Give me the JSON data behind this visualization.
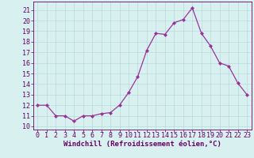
{
  "x": [
    0,
    1,
    2,
    3,
    4,
    5,
    6,
    7,
    8,
    9,
    10,
    11,
    12,
    13,
    14,
    15,
    16,
    17,
    18,
    19,
    20,
    21,
    22,
    23
  ],
  "y": [
    12,
    12,
    11,
    11,
    10.5,
    11,
    11,
    11.2,
    11.3,
    12,
    13.2,
    14.7,
    17.2,
    18.8,
    18.7,
    19.8,
    20.1,
    21.2,
    18.8,
    17.6,
    16.0,
    15.7,
    14.1,
    13.0
  ],
  "line_color": "#993399",
  "marker": "D",
  "marker_size": 2.0,
  "bg_color": "#d8f0f0",
  "grid_color": "#b8dada",
  "xlabel": "Windchill (Refroidissement éolien,°C)",
  "ylabel_ticks": [
    10,
    11,
    12,
    13,
    14,
    15,
    16,
    17,
    18,
    19,
    20,
    21
  ],
  "ylim": [
    9.7,
    21.8
  ],
  "xlim": [
    -0.5,
    23.5
  ],
  "xtick_labels": [
    "0",
    "1",
    "2",
    "3",
    "4",
    "5",
    "6",
    "7",
    "8",
    "9",
    "10",
    "11",
    "12",
    "13",
    "14",
    "15",
    "16",
    "17",
    "18",
    "19",
    "20",
    "21",
    "22",
    "23"
  ],
  "axis_color": "#660066",
  "tick_label_color": "#660066",
  "xlabel_color": "#660066",
  "xlabel_fontsize": 6.5,
  "tick_fontsize": 6.0
}
